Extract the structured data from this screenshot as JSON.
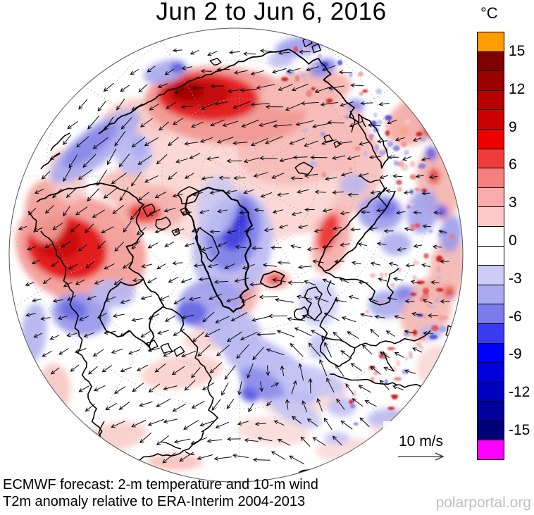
{
  "title": "Jun 2 to Jun 6, 2016",
  "colorbar": {
    "unit": "°C",
    "ticks": [
      "15",
      "12",
      "9",
      "6",
      "3",
      "0",
      "-3",
      "-6",
      "-9",
      "-12",
      "-15"
    ],
    "cells": [
      "#FF9C00",
      "#7E0000",
      "#9B0000",
      "#B80000",
      "#CB0000",
      "#EE0000",
      "#F03B3B",
      "#F77E7E",
      "#FAAAAA",
      "#FCC8C8",
      "#FFFFFF",
      "#FFFFFF",
      "#CCCCF5",
      "#AAAAF0",
      "#7B7BEB",
      "#3A3AF0",
      "#0000FF",
      "#0000DC",
      "#0000BE",
      "#00009B",
      "#000078",
      "#FF00FF"
    ]
  },
  "wind_scale": {
    "label": "10 m/s"
  },
  "caption": {
    "line1": "ECMWF forecast: 2-m temperature and 10-m wind",
    "line2": "T2m anomaly relative to ERA-Interim 2004-2013"
  },
  "watermark": "polarportal.org"
}
